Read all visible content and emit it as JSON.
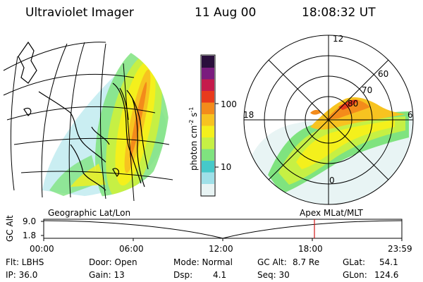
{
  "header": {
    "instrument": "Ultraviolet Imager",
    "date": "11 Aug 00",
    "time": "18:08:32 UT"
  },
  "colorbar": {
    "unit_label": "photon cm",
    "unit_sup1": "-2",
    "unit_mid": "s",
    "unit_sup2": "-1",
    "ticks": [
      "100",
      "10"
    ],
    "colors": [
      "#e8f4f4",
      "#9fe0e8",
      "#46c9c9",
      "#7fe37f",
      "#c6f044",
      "#f4f01c",
      "#f7c320",
      "#f38b1b",
      "#e83a1c",
      "#c51b4b",
      "#7a1c7e",
      "#2a0f3c"
    ]
  },
  "left_panel": {
    "label": "Geographic Lat/Lon"
  },
  "right_panel": {
    "label": "Apex MLat/MLT",
    "mlt_labels": {
      "top": "12",
      "left": "18",
      "right": "6",
      "bottom": "0"
    },
    "lat_labels": [
      "60",
      "70",
      "80"
    ]
  },
  "altitude_plot": {
    "ylabel": "GC Alt",
    "ticks": [
      "9.0",
      "1.8"
    ],
    "time_labels": [
      "00:00",
      "06:00",
      "12:00",
      "18:00",
      "23:59"
    ],
    "marker_color": "#d01818"
  },
  "footer": {
    "flt": "Flt: LBHS",
    "ip": "IP: 36.0",
    "door": "Door: Open",
    "gain": "Gain: 13",
    "mode": "Mode: Normal",
    "dsp_label": "Dsp:",
    "dsp_value": "4.1",
    "gcalt_label": "GC Alt:",
    "gcalt_value": "8.7 Re",
    "seq": "Seq: 30",
    "glat_label": "GLat:",
    "glat_value": "54.1",
    "glon_label": "GLon:",
    "glon_value": "124.6"
  }
}
